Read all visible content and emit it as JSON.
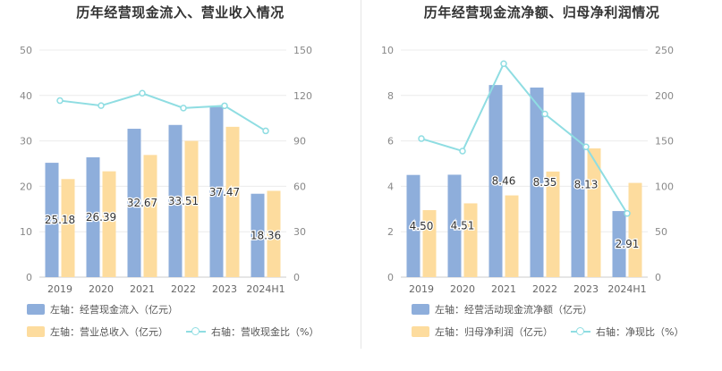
{
  "charts": [
    {
      "title": "历年经营现金流入、营业收入情况",
      "chart_data": {
        "type": "bar",
        "categories": [
          "2019",
          "2020",
          "2021",
          "2022",
          "2023",
          "2024H1"
        ],
        "series": [
          {
            "name": "左轴：经营现金流入（亿元）",
            "type": "bar",
            "axis": "left",
            "values": [
              25.18,
              26.39,
              32.67,
              33.51,
              37.47,
              18.36
            ],
            "data_labels": [
              "25.18",
              "26.39",
              "32.67",
              "33.51",
              "37.47",
              "18.36"
            ],
            "color": "#8eaedb"
          },
          {
            "name": "左轴：营业总收入（亿元）",
            "type": "bar",
            "axis": "left",
            "values": [
              21.6,
              23.3,
              26.9,
              30.0,
              33.1,
              19.0
            ],
            "color": "#fddc9e"
          },
          {
            "name": "右轴：营收现金比（%）",
            "type": "line",
            "axis": "right",
            "values": [
              116.6,
              113.3,
              121.5,
              111.7,
              113.2,
              96.6
            ],
            "color": "#8fdde2"
          }
        ],
        "left_ticks": [
          "0",
          "10",
          "20",
          "30",
          "40",
          "50"
        ],
        "right_ticks": [
          "0",
          "30",
          "60",
          "90",
          "120",
          "150"
        ],
        "ylim_left": [
          0,
          50
        ],
        "ylim_right": [
          0,
          150
        ],
        "grid": true,
        "legend_position": "bottom"
      }
    },
    {
      "title": "历年经营现金流净额、归母净利润情况",
      "chart_data": {
        "type": "bar",
        "categories": [
          "2019",
          "2020",
          "2021",
          "2022",
          "2023",
          "2024H1"
        ],
        "series": [
          {
            "name": "左轴：经营活动现金流净额（亿元）",
            "type": "bar",
            "axis": "left",
            "values": [
              4.5,
              4.51,
              8.46,
              8.35,
              8.13,
              2.91
            ],
            "data_labels": [
              "4.50",
              "4.51",
              "8.46",
              "8.35",
              "8.13",
              "2.91"
            ],
            "color": "#8eaedb"
          },
          {
            "name": "左轴：归母净利润（亿元）",
            "type": "bar",
            "axis": "left",
            "values": [
              2.95,
              3.25,
              3.6,
              4.65,
              5.67,
              4.15
            ],
            "color": "#fddc9e"
          },
          {
            "name": "右轴：净现比（%）",
            "type": "line",
            "axis": "right",
            "values": [
              152.5,
              138.8,
              235.0,
              179.6,
              143.4,
              70.1
            ],
            "color": "#8fdde2"
          }
        ],
        "left_ticks": [
          "0",
          "2",
          "4",
          "6",
          "8",
          "10"
        ],
        "right_ticks": [
          "0",
          "50",
          "100",
          "150",
          "200",
          "250"
        ],
        "ylim_left": [
          0,
          10
        ],
        "ylim_right": [
          0,
          250
        ],
        "grid": true,
        "legend_position": "bottom"
      }
    }
  ]
}
